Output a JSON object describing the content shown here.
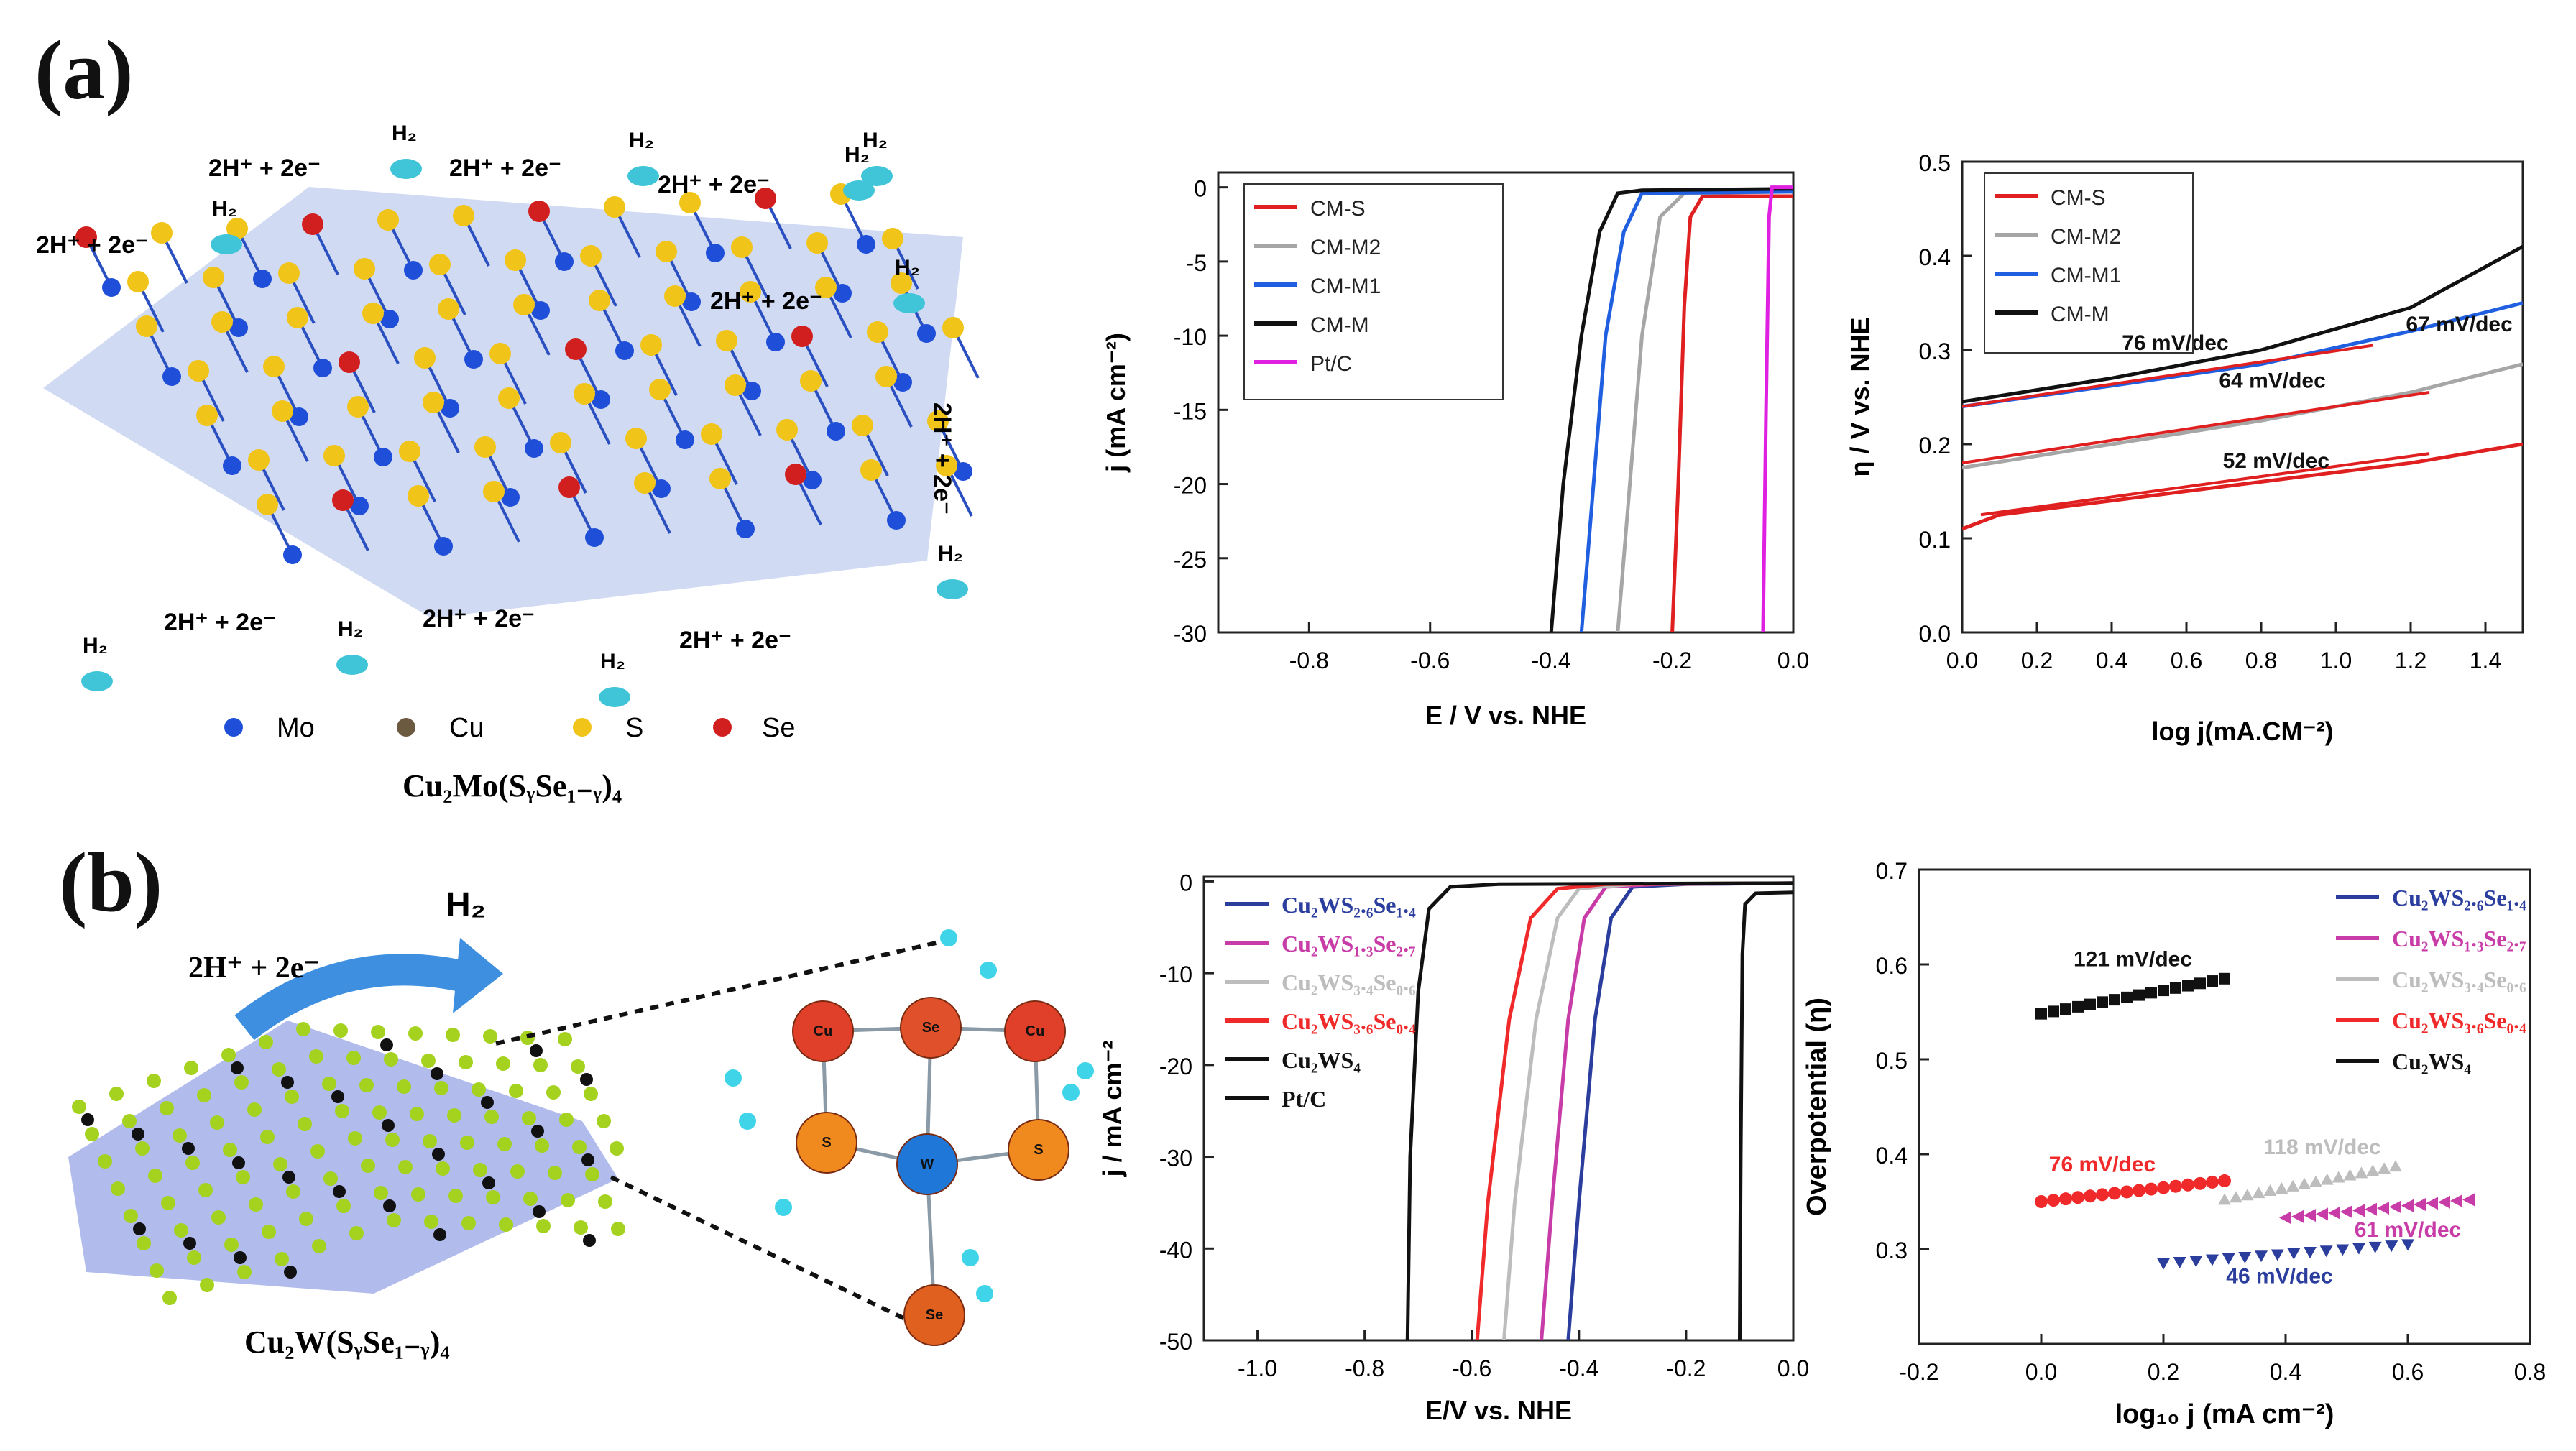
{
  "panels": {
    "a_label": "(a)",
    "b_label": "(b)"
  },
  "schematic_a": {
    "reactions": [
      "2H⁺ + 2e⁻",
      "2H⁺ + 2e⁻",
      "2H⁺ + 2e⁻",
      "2H⁺ + 2e⁻",
      "2H⁺ + 2e⁻",
      "2H⁺ + 2e⁻",
      "2H⁺ + 2e⁻",
      "2H⁺ + 2e⁻",
      "2H⁺ + 2e⁻"
    ],
    "h2": [
      "H₂",
      "H₂",
      "H₂",
      "H₂",
      "H₂",
      "H₂",
      "H₂",
      "H₂",
      "H₂",
      "H₂"
    ],
    "legend": [
      {
        "label": "Mo",
        "color": "#1f4fd8"
      },
      {
        "label": "Cu",
        "color": "#6b5a3f"
      },
      {
        "label": "S",
        "color": "#f0c419"
      },
      {
        "label": "Se",
        "color": "#d11f1f"
      }
    ],
    "formula": "Cu₂Mo(SᵧSe₁₋ᵧ)₄"
  },
  "schematic_b": {
    "reaction": "2H⁺ + 2e⁻",
    "product": "H₂",
    "formula": "Cu₂W(SᵧSe₁₋ᵧ)₄",
    "atoms": [
      "Cu",
      "Se",
      "Cu",
      "S",
      "W",
      "S",
      "Se"
    ]
  },
  "chart_data": [
    {
      "id": "a-lsv",
      "type": "line",
      "xlabel": "E / V vs. NHE",
      "ylabel": "j (mA cm⁻²)",
      "xlim": [
        -0.95,
        0.0
      ],
      "ylim": [
        -30,
        1
      ],
      "xticks": [
        -0.8,
        -0.6,
        -0.4,
        -0.2,
        0.0
      ],
      "xtick_labels": [
        "-0.8",
        "-0.6",
        "-0.4",
        "-0.2",
        "0.0"
      ],
      "yticks": [
        0,
        -5,
        -10,
        -15,
        -20,
        -25,
        -30
      ],
      "ytick_labels": [
        "0",
        "-5",
        "-10",
        "-15",
        "-20",
        "-25",
        "-30"
      ],
      "series": [
        {
          "name": "CM-S",
          "color": "#e02020",
          "points": [
            [
              -0.2,
              -30
            ],
            [
              -0.19,
              -20
            ],
            [
              -0.18,
              -8
            ],
            [
              -0.17,
              -2
            ],
            [
              -0.15,
              -0.6
            ],
            [
              -0.05,
              -0.6
            ],
            [
              0.0,
              -0.6
            ]
          ]
        },
        {
          "name": "CM-M2",
          "color": "#a6a6a6",
          "points": [
            [
              -0.29,
              -30
            ],
            [
              -0.27,
              -20
            ],
            [
              -0.25,
              -10
            ],
            [
              -0.22,
              -2
            ],
            [
              -0.18,
              -0.4
            ],
            [
              0.0,
              -0.3
            ]
          ]
        },
        {
          "name": "CM-M1",
          "color": "#1f5fe0",
          "points": [
            [
              -0.35,
              -30
            ],
            [
              -0.33,
              -20
            ],
            [
              -0.31,
              -10
            ],
            [
              -0.28,
              -3
            ],
            [
              -0.25,
              -0.4
            ],
            [
              0.0,
              -0.3
            ]
          ]
        },
        {
          "name": "CM-M",
          "color": "#111111",
          "points": [
            [
              -0.4,
              -30
            ],
            [
              -0.38,
              -20
            ],
            [
              -0.35,
              -10
            ],
            [
              -0.32,
              -3
            ],
            [
              -0.29,
              -0.4
            ],
            [
              -0.25,
              -0.2
            ],
            [
              0.0,
              -0.1
            ]
          ]
        },
        {
          "name": "Pt/C",
          "color": "#e020e0",
          "points": [
            [
              -0.05,
              -30
            ],
            [
              -0.045,
              -15
            ],
            [
              -0.04,
              -2
            ],
            [
              -0.035,
              0
            ],
            [
              0.0,
              0
            ]
          ]
        }
      ]
    },
    {
      "id": "a-tafel",
      "type": "line",
      "xlabel": "log j(mA.CM⁻²)",
      "ylabel": "η / V vs. NHE",
      "xlim": [
        0.0,
        1.5
      ],
      "ylim": [
        0.0,
        0.5
      ],
      "xticks": [
        0.0,
        0.2,
        0.4,
        0.6,
        0.8,
        1.0,
        1.2,
        1.4
      ],
      "xtick_labels": [
        "0.0",
        "0.2",
        "0.4",
        "0.6",
        "0.8",
        "1.0",
        "1.2",
        "1.4"
      ],
      "yticks": [
        0.0,
        0.1,
        0.2,
        0.3,
        0.4,
        0.5
      ],
      "ytick_labels": [
        "0.0",
        "0.1",
        "0.2",
        "0.3",
        "0.4",
        "0.5"
      ],
      "series": [
        {
          "name": "CM-S",
          "color": "#e02020",
          "points": [
            [
              0.0,
              0.11
            ],
            [
              0.1,
              0.125
            ],
            [
              0.4,
              0.14
            ],
            [
              0.8,
              0.16
            ],
            [
              1.2,
              0.18
            ],
            [
              1.5,
              0.2
            ]
          ]
        },
        {
          "name": "CM-M2",
          "color": "#a6a6a6",
          "points": [
            [
              0.0,
              0.175
            ],
            [
              0.4,
              0.2
            ],
            [
              0.8,
              0.225
            ],
            [
              1.2,
              0.255
            ],
            [
              1.5,
              0.285
            ]
          ]
        },
        {
          "name": "CM-M1",
          "color": "#1f5fe0",
          "points": [
            [
              0.0,
              0.24
            ],
            [
              0.4,
              0.262
            ],
            [
              0.8,
              0.285
            ],
            [
              1.2,
              0.32
            ],
            [
              1.5,
              0.35
            ]
          ]
        },
        {
          "name": "CM-M",
          "color": "#111111",
          "points": [
            [
              0.0,
              0.245
            ],
            [
              0.4,
              0.27
            ],
            [
              0.8,
              0.3
            ],
            [
              1.2,
              0.345
            ],
            [
              1.5,
              0.41
            ]
          ]
        }
      ],
      "fits": [
        {
          "color": "#e02020",
          "points": [
            [
              0.05,
              0.125
            ],
            [
              1.25,
              0.19
            ]
          ]
        },
        {
          "color": "#e02020",
          "points": [
            [
              0.0,
              0.18
            ],
            [
              1.25,
              0.255
            ]
          ]
        },
        {
          "color": "#e02020",
          "points": [
            [
              0.0,
              0.24
            ],
            [
              1.1,
              0.305
            ]
          ]
        }
      ],
      "annotations": [
        {
          "text": "76 mV/dec",
          "x": 0.57,
          "y": 0.3
        },
        {
          "text": "67 mV/dec",
          "x": 1.33,
          "y": 0.32
        },
        {
          "text": "64 mV/dec",
          "x": 0.83,
          "y": 0.26
        },
        {
          "text": "52 mV/dec",
          "x": 0.84,
          "y": 0.175
        }
      ]
    },
    {
      "id": "b-lsv",
      "type": "line",
      "xlabel": "E/V vs. NHE",
      "ylabel": "j / mA cm⁻²",
      "xlim": [
        -1.1,
        0.0
      ],
      "ylim": [
        -50,
        0.5
      ],
      "xticks": [
        -1.0,
        -0.8,
        -0.6,
        -0.4,
        -0.2,
        0.0
      ],
      "xtick_labels": [
        "-1.0",
        "-0.8",
        "-0.6",
        "-0.4",
        "-0.2",
        "0.0"
      ],
      "yticks": [
        0,
        -10,
        -20,
        -30,
        -40,
        -50
      ],
      "ytick_labels": [
        "0",
        "-10",
        "-20",
        "-30",
        "-40",
        "-50"
      ],
      "series": [
        {
          "name": "Cu₂WS₂.₆Se₁.₄",
          "color": "#2b3e9e",
          "points": [
            [
              -0.42,
              -50
            ],
            [
              -0.4,
              -35
            ],
            [
              -0.37,
              -15
            ],
            [
              -0.34,
              -4
            ],
            [
              -0.3,
              -0.6
            ],
            [
              -0.2,
              -0.3
            ],
            [
              0.0,
              -0.2
            ]
          ]
        },
        {
          "name": "Cu₂WS₁.₃Se₂.₇",
          "color": "#c83ca8",
          "points": [
            [
              -0.47,
              -50
            ],
            [
              -0.45,
              -35
            ],
            [
              -0.42,
              -15
            ],
            [
              -0.39,
              -4
            ],
            [
              -0.35,
              -0.6
            ],
            [
              -0.25,
              -0.3
            ],
            [
              0.0,
              -0.2
            ]
          ]
        },
        {
          "name": "Cu₂WS₃.₄Se₀.₆",
          "color": "#bdbdbd",
          "points": [
            [
              -0.54,
              -50
            ],
            [
              -0.52,
              -35
            ],
            [
              -0.48,
              -15
            ],
            [
              -0.44,
              -4
            ],
            [
              -0.4,
              -0.8
            ],
            [
              -0.3,
              -0.3
            ],
            [
              0.0,
              -0.2
            ]
          ]
        },
        {
          "name": "Cu₂WS₃.₆Se₀.₄",
          "color": "#f02a2a",
          "points": [
            [
              -0.59,
              -50
            ],
            [
              -0.57,
              -35
            ],
            [
              -0.53,
              -15
            ],
            [
              -0.49,
              -4
            ],
            [
              -0.44,
              -0.8
            ],
            [
              -0.35,
              -0.3
            ],
            [
              0.0,
              -0.2
            ]
          ]
        },
        {
          "name": "Cu₂WS₄",
          "color": "#111111",
          "points": [
            [
              -0.72,
              -50
            ],
            [
              -0.715,
              -30
            ],
            [
              -0.7,
              -12
            ],
            [
              -0.68,
              -3
            ],
            [
              -0.64,
              -0.6
            ],
            [
              -0.55,
              -0.3
            ],
            [
              0.0,
              -0.2
            ]
          ]
        },
        {
          "name": "Pt/C",
          "color": "#111111",
          "points": [
            [
              -0.1,
              -50
            ],
            [
              -0.098,
              -30
            ],
            [
              -0.095,
              -8
            ],
            [
              -0.09,
              -2.5
            ],
            [
              -0.07,
              -1.3
            ],
            [
              0.0,
              -1.2
            ]
          ]
        }
      ]
    },
    {
      "id": "b-tafel",
      "type": "scatter",
      "xlabel": "log₁₀ j (mA cm⁻²)",
      "ylabel": "Overpotential (η)",
      "xlim": [
        -0.2,
        0.8
      ],
      "ylim": [
        0.2,
        0.7
      ],
      "xticks": [
        -0.2,
        0.0,
        0.2,
        0.4,
        0.6,
        0.8
      ],
      "xtick_labels": [
        "-0.2",
        "0.0",
        "0.2",
        "0.4",
        "0.6",
        "0.8"
      ],
      "yticks": [
        0.3,
        0.4,
        0.5,
        0.6,
        0.7
      ],
      "ytick_labels": [
        "0.3",
        "0.4",
        "0.5",
        "0.6",
        "0.7"
      ],
      "series": [
        {
          "name": "Cu₂WS₂.₆Se₁.₄",
          "color": "#2b3e9e",
          "marker": "triangle-down",
          "x0": 0.2,
          "x1": 0.6,
          "y0": 0.285,
          "y1": 0.305
        },
        {
          "name": "Cu₂WS₁.₃Se₂.₇",
          "color": "#c83ca8",
          "marker": "triangle-left",
          "x0": 0.4,
          "x1": 0.7,
          "y0": 0.333,
          "y1": 0.352
        },
        {
          "name": "Cu₂WS₃.₄Se₀.₆",
          "color": "#bdbdbd",
          "marker": "triangle-up",
          "x0": 0.3,
          "x1": 0.58,
          "y0": 0.352,
          "y1": 0.387
        },
        {
          "name": "Cu₂WS₃.₆Se₀.₄",
          "color": "#f02a2a",
          "marker": "circle",
          "x0": 0.0,
          "x1": 0.3,
          "y0": 0.35,
          "y1": 0.372
        },
        {
          "name": "Cu₂WS₄",
          "color": "#111111",
          "marker": "square",
          "x0": 0.0,
          "x1": 0.3,
          "y0": 0.548,
          "y1": 0.585
        }
      ],
      "annotations": [
        {
          "text": "121 mV/dec",
          "x": 0.15,
          "y": 0.598,
          "color": "#111111"
        },
        {
          "text": "76 mV/dec",
          "x": 0.1,
          "y": 0.382,
          "color": "#f02a2a"
        },
        {
          "text": "118 mV/dec",
          "x": 0.46,
          "y": 0.4,
          "color": "#bdbdbd"
        },
        {
          "text": "61 mV/dec",
          "x": 0.6,
          "y": 0.313,
          "color": "#c83ca8"
        },
        {
          "text": "46 mV/dec",
          "x": 0.39,
          "y": 0.264,
          "color": "#2b3e9e"
        }
      ]
    }
  ]
}
